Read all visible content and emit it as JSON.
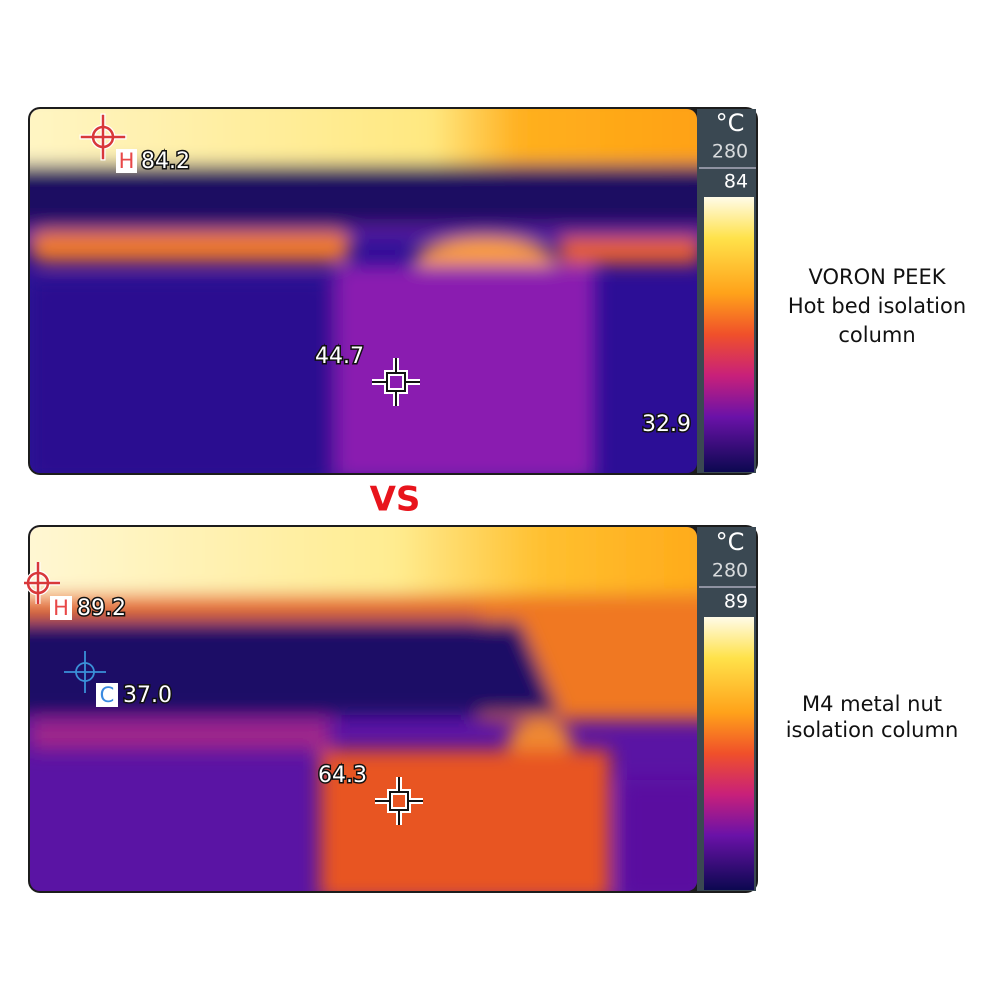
{
  "vs": "VS",
  "panels": [
    {
      "unit": "°C",
      "scale_max": "280",
      "scale_current": "84",
      "hot_label": "H",
      "hot_value": "84.2",
      "center_value": "44.7",
      "corner_value": "32.9",
      "caption": [
        "VORON PEEK",
        "Hot bed isolation",
        "column"
      ]
    },
    {
      "unit": "°C",
      "scale_max": "280",
      "scale_current": "89",
      "hot_label": "H",
      "hot_value": "89.2",
      "cold_label": "C",
      "cold_value": "37.0",
      "center_value": "64.3",
      "caption": [
        "M4 metal nut",
        "isolation column"
      ]
    }
  ]
}
